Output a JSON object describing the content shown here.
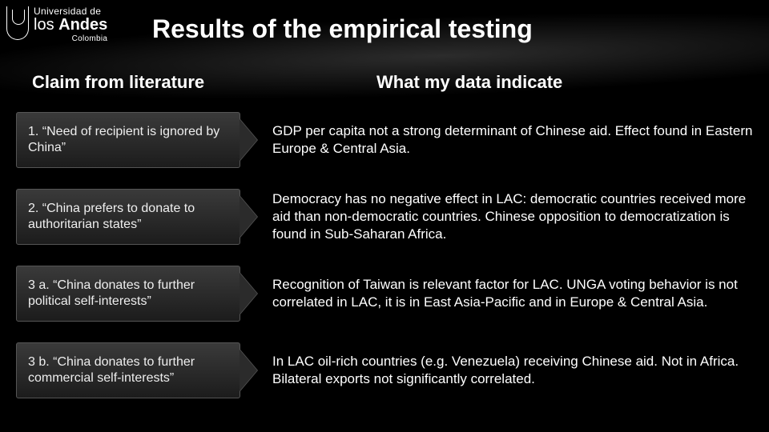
{
  "logo": {
    "line1": "Universidad de",
    "line2_light": "los ",
    "line2_bold": "Andes",
    "country": "Colombia"
  },
  "title": "Results of the empirical testing",
  "columns": {
    "left": "Claim from literature",
    "right": "What my data indicate"
  },
  "rows": [
    {
      "claim": "1. “Need of recipient is ignored by China”",
      "finding": "GDP per capita not a strong determinant of Chinese aid. Effect found in Eastern Europe & Central Asia."
    },
    {
      "claim": "2. “China prefers to donate to authoritarian states”",
      "finding": "Democracy has no negative effect in LAC: democratic countries received more aid than non-democratic countries. Chinese opposition to democratization is found in Sub-Saharan Africa."
    },
    {
      "claim": "3 a. “China donates to further political self-interests”",
      "finding": "Recognition of Taiwan is relevant factor for LAC. UNGA voting behavior is not correlated in LAC, it is in East Asia-Pacific and in Europe & Central Asia."
    },
    {
      "claim": "3 b. “China donates to further commercial self-interests”",
      "finding": "In LAC oil-rich countries (e.g. Venezuela) receiving Chinese aid. Not in Africa. Bilateral exports not significantly correlated."
    }
  ],
  "style": {
    "background": "#000000",
    "title_fontsize": 32,
    "header_fontsize": 22,
    "body_fontsize": 17,
    "claim_bg_top": "#3a3a3a",
    "claim_bg_bottom": "#1c1c1c",
    "claim_border": "#555555",
    "text_color": "#ffffff"
  }
}
